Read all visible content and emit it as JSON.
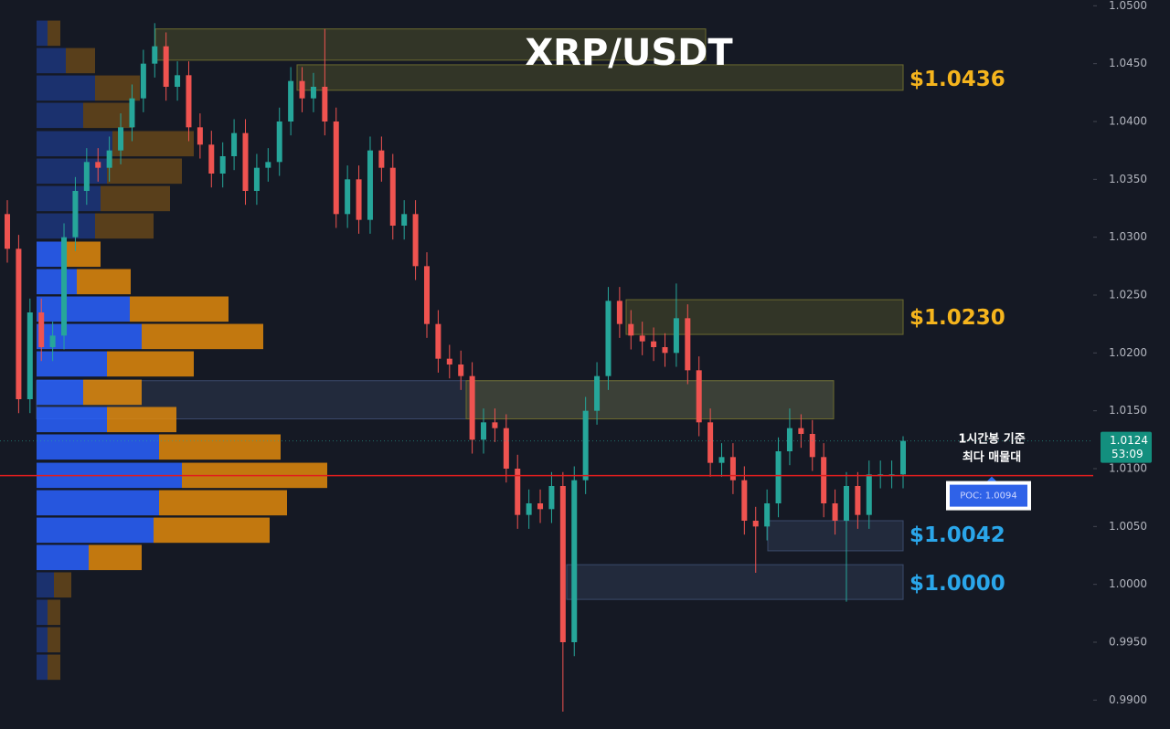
{
  "chart_data": {
    "type": "candlestick",
    "title": "XRP/USDT",
    "ylim": [
      0.9875,
      1.0505
    ],
    "yticks": [
      {
        "value": 0.99,
        "label": "0.9900"
      },
      {
        "value": 0.995,
        "label": "0.9950"
      },
      {
        "value": 1.0,
        "label": "1.0000"
      },
      {
        "value": 1.005,
        "label": "1.0050"
      },
      {
        "value": 1.01,
        "label": "1.0100"
      },
      {
        "value": 1.015,
        "label": "1.0150"
      },
      {
        "value": 1.02,
        "label": "1.0200"
      },
      {
        "value": 1.025,
        "label": "1.0250"
      },
      {
        "value": 1.03,
        "label": "1.0300"
      },
      {
        "value": 1.035,
        "label": "1.0350"
      },
      {
        "value": 1.04,
        "label": "1.0400"
      },
      {
        "value": 1.045,
        "label": "1.0450"
      },
      {
        "value": 1.05,
        "label": "1.0500"
      }
    ],
    "grid": false,
    "up_color": "#26a69a",
    "down_color": "#ef5350",
    "open": [
      1.032,
      1.029,
      1.016,
      1.0235,
      1.0205,
      1.0215,
      1.03,
      1.034,
      1.0365,
      1.036,
      1.0375,
      1.0395,
      1.042,
      1.045,
      1.0465,
      1.043,
      1.044,
      1.0395,
      1.038,
      1.0355,
      1.037,
      1.039,
      1.034,
      1.036,
      1.0365,
      1.04,
      1.0435,
      1.042,
      1.043,
      1.04,
      1.032,
      1.035,
      1.0315,
      1.0375,
      1.036,
      1.031,
      1.032,
      1.0275,
      1.0225,
      1.0195,
      1.019,
      1.018,
      1.0125,
      1.014,
      1.0135,
      1.01,
      1.006,
      1.007,
      1.0065,
      1.0085,
      0.995,
      1.009,
      1.015,
      1.018,
      1.0245,
      1.0225,
      1.0215,
      1.021,
      1.0205,
      1.02,
      1.023,
      1.0185,
      1.014,
      1.0105,
      1.011,
      1.009,
      1.0055,
      1.005,
      1.007,
      1.0115,
      1.0135,
      1.013,
      1.011,
      1.007,
      1.0055,
      1.0085,
      1.006,
      1.0095,
      1.0095,
      1.0095
    ],
    "high": [
      1.0332,
      1.0302,
      1.0247,
      1.0247,
      1.0227,
      1.0312,
      1.0352,
      1.0377,
      1.0377,
      1.0387,
      1.0407,
      1.0432,
      1.0462,
      1.0485,
      1.0477,
      1.0452,
      1.0452,
      1.0407,
      1.0392,
      1.0382,
      1.0402,
      1.0402,
      1.0372,
      1.0377,
      1.0412,
      1.0447,
      1.0447,
      1.0442,
      1.048,
      1.0412,
      1.0362,
      1.0362,
      1.0387,
      1.0387,
      1.0372,
      1.0332,
      1.0332,
      1.0287,
      1.0237,
      1.0207,
      1.0202,
      1.0192,
      1.0152,
      1.0152,
      1.0147,
      1.0112,
      1.0082,
      1.0082,
      1.0097,
      1.0097,
      1.0102,
      1.0162,
      1.0192,
      1.0257,
      1.0257,
      1.0237,
      1.0227,
      1.0222,
      1.0217,
      1.026,
      1.0242,
      1.0197,
      1.0152,
      1.0122,
      1.0122,
      1.0102,
      1.0067,
      1.0082,
      1.0127,
      1.0152,
      1.0147,
      1.0142,
      1.0122,
      1.0082,
      1.0097,
      1.0097,
      1.0107,
      1.0107,
      1.0107,
      1.0128
    ],
    "low": [
      1.0278,
      1.0148,
      1.0148,
      1.0193,
      1.0193,
      1.0203,
      1.0288,
      1.0328,
      1.0348,
      1.0348,
      1.0363,
      1.0383,
      1.0408,
      1.0438,
      1.0418,
      1.0418,
      1.0383,
      1.0368,
      1.0343,
      1.0343,
      1.0358,
      1.0328,
      1.0328,
      1.0348,
      1.0353,
      1.0388,
      1.0408,
      1.0408,
      1.0388,
      1.0308,
      1.0308,
      1.0303,
      1.0303,
      1.0348,
      1.0298,
      1.0298,
      1.0263,
      1.0213,
      1.0183,
      1.0178,
      1.0168,
      1.0113,
      1.0113,
      1.0123,
      1.0088,
      1.0048,
      1.0048,
      1.0053,
      1.0053,
      0.989,
      0.9938,
      1.0078,
      1.0138,
      1.0168,
      1.0213,
      1.0203,
      1.0198,
      1.0193,
      1.0188,
      1.0188,
      1.0173,
      1.0128,
      1.0093,
      1.0093,
      1.0078,
      1.0043,
      1.001,
      1.0038,
      1.0058,
      1.0103,
      1.0118,
      1.0098,
      1.0058,
      1.0043,
      0.9985,
      1.0048,
      1.0048,
      1.0083,
      1.0083,
      1.0083
    ],
    "close": [
      1.029,
      1.016,
      1.0235,
      1.0205,
      1.0215,
      1.03,
      1.034,
      1.0365,
      1.036,
      1.0375,
      1.0395,
      1.042,
      1.045,
      1.0465,
      1.043,
      1.044,
      1.0395,
      1.038,
      1.0355,
      1.037,
      1.039,
      1.034,
      1.036,
      1.0365,
      1.04,
      1.0435,
      1.042,
      1.043,
      1.04,
      1.032,
      1.035,
      1.0315,
      1.0375,
      1.036,
      1.031,
      1.032,
      1.0275,
      1.0225,
      1.0195,
      1.019,
      1.018,
      1.0125,
      1.014,
      1.0135,
      1.01,
      1.006,
      1.007,
      1.0065,
      1.0085,
      0.995,
      1.009,
      1.015,
      1.018,
      1.0245,
      1.0225,
      1.0215,
      1.021,
      1.0205,
      1.02,
      1.023,
      1.0185,
      1.014,
      1.0105,
      1.011,
      1.009,
      1.0055,
      1.005,
      1.007,
      1.0115,
      1.0135,
      1.013,
      1.011,
      1.007,
      1.0055,
      1.0085,
      1.006,
      1.0095,
      1.0095,
      1.0095,
      1.0124
    ],
    "profile": {
      "buy_color": "#2962ff",
      "sell_color": "#e08a0c",
      "value_area": {
        "high": 1.0297,
        "low": 1.0023
      },
      "prices": [
        1.04763,
        1.04526,
        1.04289,
        1.04053,
        1.03808,
        1.03571,
        1.03334,
        1.03097,
        1.02853,
        1.02616,
        1.02379,
        1.02142,
        1.01905,
        1.0166,
        1.01424,
        1.01187,
        1.00942,
        1.00705,
        1.00468,
        1.00232,
        0.99995,
        0.99758,
        0.99521,
        0.99284
      ],
      "buy": [
        12,
        32,
        64,
        51,
        83,
        77,
        70,
        64,
        32,
        44,
        102,
        115,
        77,
        51,
        77,
        134,
        159,
        134,
        128,
        57,
        19,
        12,
        12,
        12
      ],
      "sell": [
        14,
        32,
        49,
        55,
        89,
        82,
        76,
        64,
        38,
        59,
        108,
        133,
        95,
        64,
        76,
        133,
        159,
        140,
        127,
        58,
        19,
        14,
        14,
        14
      ]
    },
    "zones": [
      {
        "top": 1.048,
        "bottom": 1.0453,
        "color": "#6b6a2e"
      },
      {
        "top": 1.0449,
        "bottom": 1.0427,
        "color": "#6b6a2e",
        "price": 1.0436,
        "label": "$1.0436",
        "label_color": "#f5b41d"
      },
      {
        "top": 1.0246,
        "bottom": 1.0216,
        "color": "#6b6a2e",
        "price": 1.023,
        "label": "$1.0230",
        "label_color": "#f5b41d"
      },
      {
        "top": 1.0176,
        "bottom": 1.0143,
        "color": "#3b4a6b"
      },
      {
        "top": 1.0176,
        "bottom": 1.0143,
        "color": "#6b6a2e"
      },
      {
        "top": 1.0055,
        "bottom": 1.0029,
        "color": "#3b4a6b",
        "price": 1.0042,
        "label": "$1.0042",
        "label_color": "#2aa6ea"
      },
      {
        "top": 1.0017,
        "bottom": 0.9987,
        "color": "#3b4a6b",
        "price": 1.0,
        "label": "$1.0000",
        "label_color": "#2aa6ea"
      }
    ],
    "poc": {
      "price": 1.0094,
      "label": "POC: 1.0094",
      "color": "#e01e1e"
    },
    "last": {
      "price": 1.0124,
      "countdown": "53:09"
    },
    "annotation": [
      "1시간봉 기준",
      "최다 매물대"
    ]
  }
}
